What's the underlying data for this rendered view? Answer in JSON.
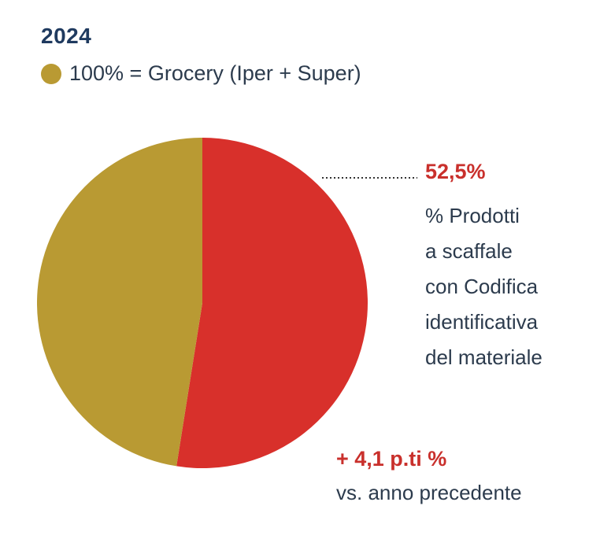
{
  "header": {
    "year": "2024",
    "legend_label": "100% = Grocery (Iper + Super)",
    "legend_color": "#b99a33"
  },
  "chart_data": {
    "type": "pie",
    "slices": [
      {
        "label": "% Prodotti a scaffale con Codifica identificativa del materiale",
        "value": 52.5,
        "color": "#d8302b"
      },
      {
        "label": "",
        "value": 47.5,
        "color": "#b99a33"
      }
    ],
    "total_label": "100% = Grocery (Iper + Super)"
  },
  "callout": {
    "value": "52,5%",
    "lines": [
      "% Prodotti",
      "a scaffale",
      "con Codifica",
      "identificativa",
      "del materiale"
    ]
  },
  "delta": {
    "value": "+ 4,1 p.ti %",
    "text": "vs. anno precedente"
  }
}
